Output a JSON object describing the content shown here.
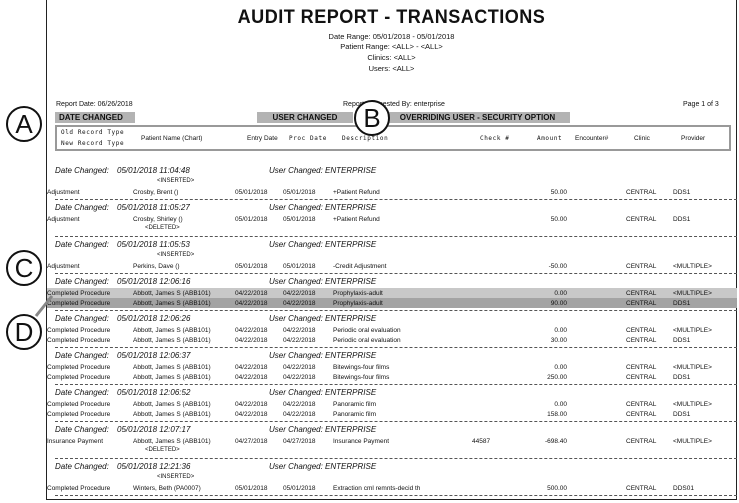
{
  "report": {
    "title": "AUDIT REPORT - TRANSACTIONS",
    "criteria": [
      "Date Range: 05/01/2018 - 05/01/2018",
      "Patient Range: <ALL> - <ALL>",
      "Clinics: <ALL>",
      "Users: <ALL>"
    ],
    "report_date": "Report Date: 06/26/2018",
    "requested_by": "Report Requested By: enterprise",
    "page": "Page 1 of 3"
  },
  "bands": {
    "date_changed": "DATE CHANGED",
    "user_changed": "USER CHANGED",
    "overriding_user": "OVERRIDING USER - SECURITY OPTION"
  },
  "columns": {
    "old_type": "Old Record Type",
    "new_type": "New Record Type",
    "patient": "Patient Name (Chart)",
    "entry": "Entry Date",
    "proc": "Proc Date",
    "desc": "Description",
    "check": "Check #",
    "amount": "Amount",
    "encounter": "Encounter#",
    "clinic": "Clinic",
    "provider": "Provider"
  },
  "callouts": [
    "A",
    "B",
    "C",
    "D"
  ],
  "groups": [
    {
      "date_label": "Date Changed:",
      "date": "05/01/2018  11:04:48",
      "user": "User Changed: ENTERPRISE",
      "marker_before": "<INSERTED>",
      "rows": [
        {
          "type": "Adjustment",
          "name": "Crosby, Brent ()",
          "entry": "05/01/2018",
          "proc": "05/01/2018",
          "desc": "+Patient Refund",
          "check": "",
          "amount": "50.00",
          "clinic": "CENTRAL",
          "provider": "DDS1"
        }
      ]
    },
    {
      "date_label": "Date Changed:",
      "date": "05/01/2018  11:05:27",
      "user": "User Changed: ENTERPRISE",
      "marker_after": "<DELETED>",
      "rows": [
        {
          "type": "Adjustment",
          "name": "Crosby, Shirley ()",
          "entry": "05/01/2018",
          "proc": "05/01/2018",
          "desc": "+Patient Refund",
          "check": "",
          "amount": "50.00",
          "clinic": "CENTRAL",
          "provider": "DDS1"
        }
      ]
    },
    {
      "date_label": "Date Changed:",
      "date": "05/01/2018  11:05:53",
      "user": "User Changed: ENTERPRISE",
      "marker_before": "<INSERTED>",
      "rows": [
        {
          "type": "Adjustment",
          "name": "Perkins, Dave ()",
          "entry": "05/01/2018",
          "proc": "05/01/2018",
          "desc": "-Credit Adjustment",
          "check": "",
          "amount": "-50.00",
          "clinic": "CENTRAL",
          "provider": "<MULTIPLE>"
        }
      ]
    },
    {
      "date_label": "Date Changed:",
      "date": "05/01/2018  12:06:16",
      "user": "User Changed: ENTERPRISE",
      "highlight": true,
      "rows": [
        {
          "type": "Completed Procedure",
          "name": "Abbott, James S (ABB101)",
          "entry": "04/22/2018",
          "proc": "04/22/2018",
          "desc": "Prophylaxis-adult",
          "check": "",
          "amount": "0.00",
          "clinic": "CENTRAL",
          "provider": "<MULTIPLE>"
        },
        {
          "type": "Completed Procedure",
          "name": "Abbott, James S (ABB101)",
          "entry": "04/22/2018",
          "proc": "04/22/2018",
          "desc": "Prophylaxis-adult",
          "check": "",
          "amount": "90.00",
          "clinic": "CENTRAL",
          "provider": "DDS1"
        }
      ]
    },
    {
      "date_label": "Date Changed:",
      "date": "05/01/2018  12:06:26",
      "user": "User Changed: ENTERPRISE",
      "rows": [
        {
          "type": "Completed Procedure",
          "name": "Abbott, James S (ABB101)",
          "entry": "04/22/2018",
          "proc": "04/22/2018",
          "desc": "Periodic oral evaluation",
          "check": "",
          "amount": "0.00",
          "clinic": "CENTRAL",
          "provider": "<MULTIPLE>"
        },
        {
          "type": "Completed Procedure",
          "name": "Abbott, James S (ABB101)",
          "entry": "04/22/2018",
          "proc": "04/22/2018",
          "desc": "Periodic oral evaluation",
          "check": "",
          "amount": "30.00",
          "clinic": "CENTRAL",
          "provider": "DDS1"
        }
      ]
    },
    {
      "date_label": "Date Changed:",
      "date": "05/01/2018  12:06:37",
      "user": "User Changed: ENTERPRISE",
      "rows": [
        {
          "type": "Completed Procedure",
          "name": "Abbott, James S (ABB101)",
          "entry": "04/22/2018",
          "proc": "04/22/2018",
          "desc": "Bitewings-four films",
          "check": "",
          "amount": "0.00",
          "clinic": "CENTRAL",
          "provider": "<MULTIPLE>"
        },
        {
          "type": "Completed Procedure",
          "name": "Abbott, James S (ABB101)",
          "entry": "04/22/2018",
          "proc": "04/22/2018",
          "desc": "Bitewings-four films",
          "check": "",
          "amount": "250.00",
          "clinic": "CENTRAL",
          "provider": "DDS1"
        }
      ]
    },
    {
      "date_label": "Date Changed:",
      "date": "05/01/2018  12:06:52",
      "user": "User Changed: ENTERPRISE",
      "rows": [
        {
          "type": "Completed Procedure",
          "name": "Abbott, James S (ABB101)",
          "entry": "04/22/2018",
          "proc": "04/22/2018",
          "desc": "Panoramic film",
          "check": "",
          "amount": "0.00",
          "clinic": "CENTRAL",
          "provider": "<MULTIPLE>"
        },
        {
          "type": "Completed Procedure",
          "name": "Abbott, James S (ABB101)",
          "entry": "04/22/2018",
          "proc": "04/22/2018",
          "desc": "Panoramic film",
          "check": "",
          "amount": "158.00",
          "clinic": "CENTRAL",
          "provider": "DDS1"
        }
      ]
    },
    {
      "date_label": "Date Changed:",
      "date": "05/01/2018  12:07:17",
      "user": "User Changed: ENTERPRISE",
      "marker_after": "<DELETED>",
      "rows": [
        {
          "type": "Insurance Payment",
          "name": "Abbott, James S (ABB101)",
          "entry": "04/27/2018",
          "proc": "04/27/2018",
          "desc": "Insurance Payment",
          "check": "44587",
          "amount": "-698.40",
          "clinic": "CENTRAL",
          "provider": "<MULTIPLE>"
        }
      ]
    },
    {
      "date_label": "Date Changed:",
      "date": "05/01/2018  12:21:36",
      "user": "User Changed: ENTERPRISE",
      "marker_before": "<INSERTED>",
      "rows": [
        {
          "type": "Completed Procedure",
          "name": "Winters, Beth (PA0007)",
          "entry": "05/01/2018",
          "proc": "05/01/2018",
          "desc": "Extraction cml remnts-decid th",
          "check": "",
          "amount": "500.00",
          "clinic": "CENTRAL",
          "provider": "DDS01"
        }
      ]
    }
  ]
}
